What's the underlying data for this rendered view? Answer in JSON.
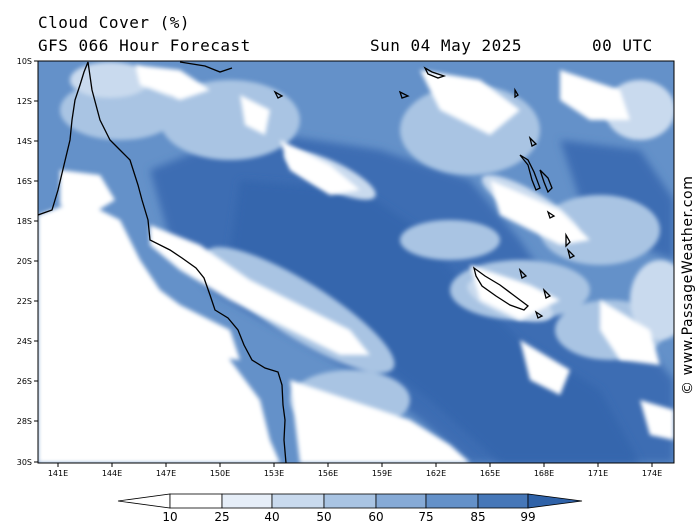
{
  "header": {
    "title": "Cloud Cover (%)",
    "subtitle": "GFS 066 Hour Forecast",
    "date": "Sun 04 May 2025",
    "time": "00 UTC"
  },
  "lat_labels": [
    "10S",
    "12S",
    "14S",
    "16S",
    "18S",
    "20S",
    "22S",
    "24S",
    "26S",
    "28S",
    "30S"
  ],
  "lon_labels": [
    "141E",
    "144E",
    "147E",
    "150E",
    "153E",
    "156E",
    "159E",
    "162E",
    "165E",
    "168E",
    "171E",
    "174E"
  ],
  "colorbar": {
    "ticks": [
      "10",
      "25",
      "40",
      "50",
      "60",
      "75",
      "85",
      "99"
    ],
    "colors": [
      "#ffffff",
      "#e6eef8",
      "#c9daee",
      "#a9c4e3",
      "#86aad6",
      "#6491c9",
      "#4677b8",
      "#2f62a8"
    ]
  },
  "copyright": "© www.PassageWeather.com"
}
